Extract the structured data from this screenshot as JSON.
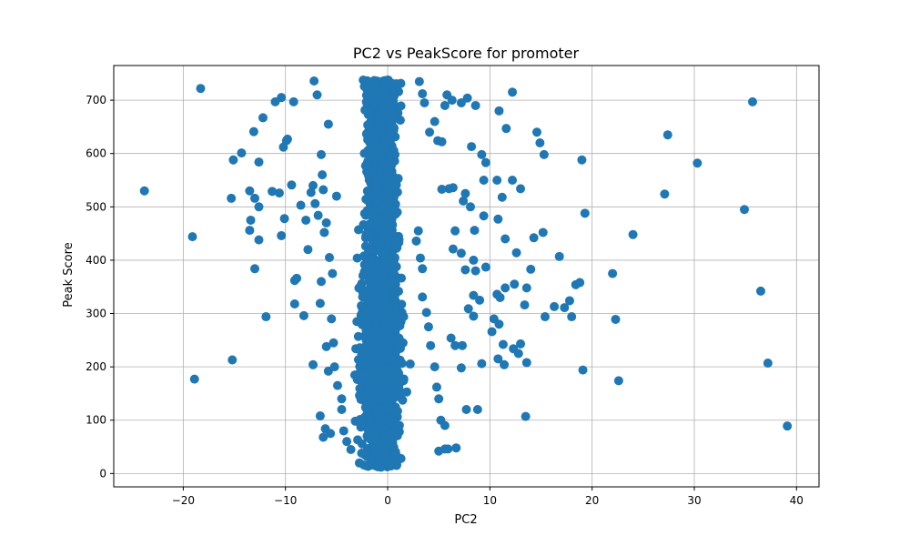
{
  "chart_data": {
    "type": "scatter",
    "title": "PC2 vs PeakScore for promoter",
    "xlabel": "PC2",
    "ylabel": "Peak Score",
    "xlim": [
      -26.8,
      42.2
    ],
    "ylim": [
      -25,
      765
    ],
    "xticks": [
      -20,
      -10,
      0,
      10,
      20,
      30,
      40
    ],
    "yticks": [
      0,
      100,
      200,
      300,
      400,
      500,
      600,
      700
    ],
    "grid": true,
    "marker_color": "#1f77b4",
    "series": [
      {
        "points": [
          [
            -23.8,
            530
          ],
          [
            -18.3,
            722
          ],
          [
            -19.1,
            444
          ],
          [
            -18.9,
            177
          ],
          [
            -15.2,
            213
          ],
          [
            -15.3,
            516
          ],
          [
            -15.1,
            588
          ],
          [
            -14.3,
            601
          ],
          [
            -13.5,
            456
          ],
          [
            -13.4,
            475
          ],
          [
            -13.5,
            530
          ],
          [
            -13.1,
            641
          ],
          [
            -13.0,
            516
          ],
          [
            -13.0,
            384
          ],
          [
            -12.6,
            438
          ],
          [
            -12.6,
            500
          ],
          [
            -12.6,
            584
          ],
          [
            -12.2,
            667
          ],
          [
            -11.9,
            294
          ],
          [
            -11.3,
            529
          ],
          [
            -11.0,
            697
          ],
          [
            -10.6,
            526
          ],
          [
            -10.4,
            705
          ],
          [
            -10.4,
            446
          ],
          [
            -10.2,
            612
          ],
          [
            -10.1,
            478
          ],
          [
            -9.9,
            624
          ],
          [
            -9.8,
            627
          ],
          [
            -9.4,
            541
          ],
          [
            -9.2,
            697
          ],
          [
            -9.1,
            318
          ],
          [
            -9.1,
            362
          ],
          [
            -8.9,
            366
          ],
          [
            -8.5,
            503
          ],
          [
            -8.2,
            296
          ],
          [
            -8.0,
            475
          ],
          [
            -7.8,
            420
          ],
          [
            -7.5,
            527
          ],
          [
            -7.3,
            204
          ],
          [
            -7.3,
            540
          ],
          [
            -7.1,
            506
          ],
          [
            -6.8,
            484
          ],
          [
            -6.6,
            319
          ],
          [
            -6.5,
            360
          ],
          [
            -6.3,
            532
          ],
          [
            -6.6,
            108
          ],
          [
            -6.3,
            68
          ],
          [
            -6.1,
            84
          ],
          [
            -6.0,
            238
          ],
          [
            -5.6,
            75
          ],
          [
            -5.8,
            192
          ],
          [
            -5.5,
            290
          ],
          [
            -5.3,
            245
          ],
          [
            -5.2,
            200
          ],
          [
            -4.9,
            165
          ],
          [
            -4.5,
            140
          ],
          [
            -5.4,
            375
          ],
          [
            -5.7,
            405
          ],
          [
            -6.2,
            452
          ],
          [
            -6.0,
            470
          ],
          [
            -6.4,
            560
          ],
          [
            -6.5,
            598
          ],
          [
            -6.9,
            710
          ],
          [
            -7.2,
            736
          ],
          [
            -5.8,
            655
          ],
          [
            -5.0,
            520
          ],
          [
            -4.5,
            120
          ],
          [
            -4.3,
            80
          ],
          [
            -4.0,
            60
          ],
          [
            -3.6,
            45
          ],
          [
            3.0,
            455
          ],
          [
            2.8,
            436
          ],
          [
            3.2,
            404
          ],
          [
            3.4,
            384
          ],
          [
            3.4,
            331
          ],
          [
            3.8,
            302
          ],
          [
            4.0,
            275
          ],
          [
            4.2,
            240
          ],
          [
            4.6,
            200
          ],
          [
            4.8,
            162
          ],
          [
            5.0,
            140
          ],
          [
            5.2,
            100
          ],
          [
            5.6,
            90
          ],
          [
            3.1,
            735
          ],
          [
            3.4,
            712
          ],
          [
            3.6,
            695
          ],
          [
            4.1,
            640
          ],
          [
            4.6,
            660
          ],
          [
            4.9,
            624
          ],
          [
            5.3,
            622
          ],
          [
            5.6,
            690
          ],
          [
            5.8,
            710
          ],
          [
            6.3,
            700
          ],
          [
            7.2,
            695
          ],
          [
            7.8,
            704
          ],
          [
            8.6,
            690
          ],
          [
            8.2,
            613
          ],
          [
            9.2,
            598
          ],
          [
            9.6,
            583
          ],
          [
            9.4,
            550
          ],
          [
            10.7,
            550
          ],
          [
            10.9,
            680
          ],
          [
            11.6,
            647
          ],
          [
            12.2,
            715
          ],
          [
            12.2,
            550
          ],
          [
            13.0,
            534
          ],
          [
            11.2,
            518
          ],
          [
            10.8,
            477
          ],
          [
            11.5,
            440
          ],
          [
            12.6,
            414
          ],
          [
            14.3,
            442
          ],
          [
            15.2,
            452
          ],
          [
            16.8,
            407
          ],
          [
            14.0,
            383
          ],
          [
            13.6,
            348
          ],
          [
            12.4,
            355
          ],
          [
            11.5,
            348
          ],
          [
            10.7,
            336
          ],
          [
            11.0,
            330
          ],
          [
            10.4,
            290
          ],
          [
            10.9,
            280
          ],
          [
            10.2,
            266
          ],
          [
            11.3,
            242
          ],
          [
            12.3,
            234
          ],
          [
            13.0,
            243
          ],
          [
            12.8,
            225
          ],
          [
            10.8,
            215
          ],
          [
            11.4,
            204
          ],
          [
            13.6,
            208
          ],
          [
            13.5,
            107
          ],
          [
            9.2,
            206
          ],
          [
            8.8,
            120
          ],
          [
            7.7,
            120
          ],
          [
            7.2,
            198
          ],
          [
            6.6,
            240
          ],
          [
            7.3,
            240
          ],
          [
            6.2,
            254
          ],
          [
            8.4,
            295
          ],
          [
            7.9,
            309
          ],
          [
            9.0,
            325
          ],
          [
            8.4,
            334
          ],
          [
            7.6,
            382
          ],
          [
            8.4,
            400
          ],
          [
            8.6,
            380
          ],
          [
            9.6,
            387
          ],
          [
            7.2,
            413
          ],
          [
            6.4,
            421
          ],
          [
            6.6,
            455
          ],
          [
            8.5,
            456
          ],
          [
            9.4,
            483
          ],
          [
            7.4,
            511
          ],
          [
            8.1,
            500
          ],
          [
            6.0,
            534
          ],
          [
            6.4,
            536
          ],
          [
            7.6,
            525
          ],
          [
            5.3,
            533
          ],
          [
            13.4,
            316
          ],
          [
            15.4,
            294
          ],
          [
            16.3,
            313
          ],
          [
            17.3,
            311
          ],
          [
            17.8,
            324
          ],
          [
            18.4,
            354
          ],
          [
            18.8,
            358
          ],
          [
            18.0,
            294
          ],
          [
            19.1,
            194
          ],
          [
            19.0,
            588
          ],
          [
            19.3,
            488
          ],
          [
            14.6,
            640
          ],
          [
            14.9,
            620
          ],
          [
            15.3,
            598
          ],
          [
            22.0,
            375
          ],
          [
            22.3,
            289
          ],
          [
            22.6,
            174
          ],
          [
            24.0,
            448
          ],
          [
            27.1,
            524
          ],
          [
            27.4,
            635
          ],
          [
            30.3,
            582
          ],
          [
            34.9,
            495
          ],
          [
            35.7,
            697
          ],
          [
            36.5,
            342
          ],
          [
            37.2,
            207
          ],
          [
            39.1,
            89
          ],
          [
            5.9,
            46
          ],
          [
            5.6,
            46
          ],
          [
            5.0,
            42
          ],
          [
            6.7,
            48
          ]
        ]
      }
    ]
  }
}
